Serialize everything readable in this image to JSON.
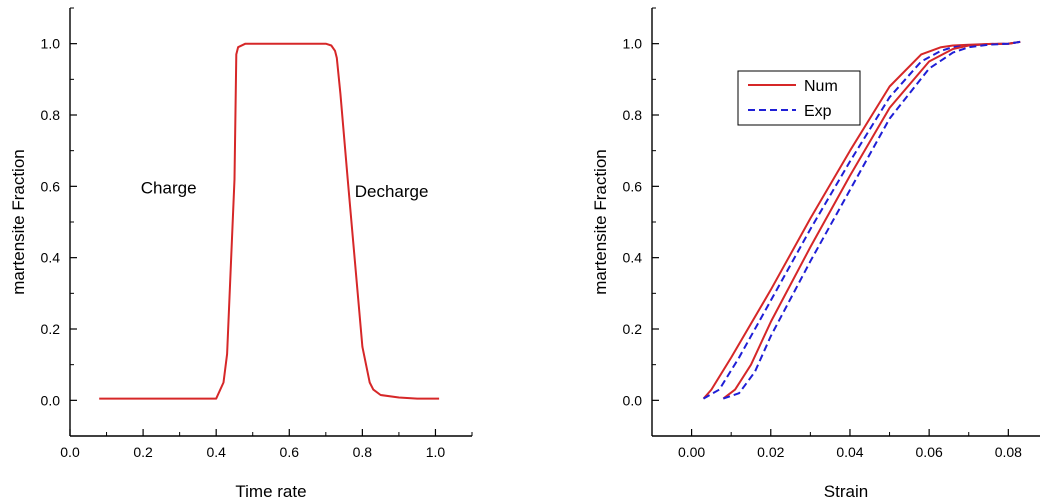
{
  "chart_data": [
    {
      "type": "line",
      "xlabel": "Time rate",
      "ylabel": "martensite Fraction",
      "xlim": [
        0.0,
        1.1
      ],
      "ylim": [
        -0.1,
        1.1
      ],
      "xticks": [
        "0.0",
        "0.2",
        "0.4",
        "0.6",
        "0.8",
        "1.0"
      ],
      "yticks": [
        "0.0",
        "0.2",
        "0.4",
        "0.6",
        "0.8",
        "1.0"
      ],
      "grid": false,
      "annotations": [
        {
          "text": "Charge",
          "x": 0.27,
          "y": 0.58
        },
        {
          "text": "Decharge",
          "x": 0.88,
          "y": 0.57
        }
      ],
      "series": [
        {
          "color": "#d62728",
          "style": "solid",
          "x": [
            0.08,
            0.4,
            0.42,
            0.43,
            0.45,
            0.455,
            0.46,
            0.48,
            0.5,
            0.6,
            0.7,
            0.715,
            0.725,
            0.73,
            0.74,
            0.76,
            0.8,
            0.82,
            0.83,
            0.85,
            0.9,
            0.95,
            1.01
          ],
          "y": [
            0.005,
            0.005,
            0.05,
            0.13,
            0.62,
            0.97,
            0.99,
            1.0,
            1.0,
            1.0,
            1.0,
            0.995,
            0.98,
            0.96,
            0.86,
            0.62,
            0.15,
            0.05,
            0.03,
            0.015,
            0.008,
            0.005,
            0.005
          ]
        }
      ]
    },
    {
      "type": "line",
      "xlabel": "Strain",
      "ylabel": "martensite Fraction",
      "xlim": [
        -0.01,
        0.088
      ],
      "ylim": [
        -0.1,
        1.1
      ],
      "xticks": [
        "0.00",
        "0.02",
        "0.04",
        "0.06",
        "0.08"
      ],
      "yticks": [
        "0.0",
        "0.2",
        "0.4",
        "0.6",
        "0.8",
        "1.0"
      ],
      "grid": false,
      "legend": {
        "position": "top-left"
      },
      "series": [
        {
          "name": "Num",
          "color": "#d62728",
          "style": "solid",
          "x": [
            0.003,
            0.005,
            0.01,
            0.02,
            0.03,
            0.04,
            0.05,
            0.058,
            0.063,
            0.066,
            0.07,
            0.075,
            0.08,
            0.083
          ],
          "y": [
            0.005,
            0.03,
            0.12,
            0.31,
            0.51,
            0.7,
            0.88,
            0.97,
            0.99,
            0.995,
            0.997,
            0.999,
            1.0,
            1.005
          ]
        },
        {
          "name": "Exp",
          "color": "#1f1fd6",
          "style": "dashed",
          "x": [
            0.003,
            0.007,
            0.012,
            0.02,
            0.03,
            0.04,
            0.05,
            0.058,
            0.063,
            0.066,
            0.07,
            0.075,
            0.08,
            0.083
          ],
          "y": [
            0.005,
            0.03,
            0.12,
            0.28,
            0.48,
            0.67,
            0.85,
            0.95,
            0.98,
            0.99,
            0.995,
            0.999,
            1.0,
            1.005
          ]
        },
        {
          "name": "Num",
          "show_in_legend": false,
          "color": "#d62728",
          "style": "solid",
          "x": [
            0.008,
            0.011,
            0.015,
            0.02,
            0.03,
            0.04,
            0.05,
            0.06,
            0.066,
            0.07,
            0.075,
            0.08,
            0.083
          ],
          "y": [
            0.005,
            0.03,
            0.1,
            0.22,
            0.43,
            0.63,
            0.82,
            0.95,
            0.985,
            0.995,
            0.999,
            1.0,
            1.005
          ]
        },
        {
          "name": "Exp",
          "show_in_legend": false,
          "color": "#1f1fd6",
          "style": "dashed",
          "x": [
            0.008,
            0.012,
            0.016,
            0.02,
            0.03,
            0.04,
            0.05,
            0.06,
            0.066,
            0.07,
            0.075,
            0.08,
            0.083
          ],
          "y": [
            0.005,
            0.02,
            0.08,
            0.18,
            0.39,
            0.59,
            0.79,
            0.93,
            0.975,
            0.99,
            0.997,
            1.0,
            1.005
          ]
        }
      ]
    }
  ]
}
